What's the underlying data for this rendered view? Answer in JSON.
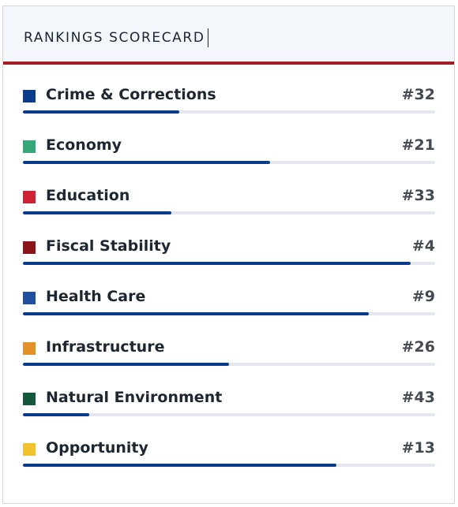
{
  "header": {
    "title": "RANKINGS SCORECARD"
  },
  "colors": {
    "header_bg": "#f3f6fa",
    "header_rule": "#a11e22",
    "bar_fill": "#0b3c8c",
    "bar_track": "#e4e7eb",
    "text": "#1d2731"
  },
  "rankings": [
    {
      "label": "Crime & Corrections",
      "rank": "#32",
      "color": "#0b3c8c",
      "progress": 0.38
    },
    {
      "label": "Economy",
      "rank": "#21",
      "color": "#36a877",
      "progress": 0.6
    },
    {
      "label": "Education",
      "rank": "#33",
      "color": "#cf2233",
      "progress": 0.36
    },
    {
      "label": "Fiscal Stability",
      "rank": "#4",
      "color": "#8c1318",
      "progress": 0.94
    },
    {
      "label": "Health Care",
      "rank": "#9",
      "color": "#1f4f9e",
      "progress": 0.84
    },
    {
      "label": "Infrastructure",
      "rank": "#26",
      "color": "#e5912a",
      "progress": 0.5
    },
    {
      "label": "Natural Environment",
      "rank": "#43",
      "color": "#15573a",
      "progress": 0.16
    },
    {
      "label": "Opportunity",
      "rank": "#13",
      "color": "#f2c12e",
      "progress": 0.76
    }
  ]
}
